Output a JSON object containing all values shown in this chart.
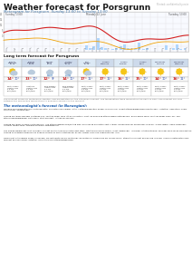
{
  "title": "Weather forecast for Porsgrunn",
  "subtitle": "Meteogram for Porsgrunn  Sunday 13:00 to Tuesday 13:00",
  "top_right_text": "Printed: confidentiality note",
  "background_color": "#ffffff",
  "title_fontsize": 6.5,
  "meteogram_label_left": "Sunday 13:00",
  "meteogram_label_mid": "Monday 22 June",
  "meteogram_label_right": "Tuesday 13:00",
  "long_term_title": "Long term forecast for Porsgrunn",
  "temp_line_color": "#d42020",
  "temp_line_color2": "#f0a000",
  "precip_color": "#99ccff",
  "grid_color": "#dddddd",
  "chart_bg": "#f8faff",
  "columns": [
    "Sunday\nafternoon\n13-18",
    "Sunday\nevening\n18-00",
    "Monday\nnight\n00-06",
    "Tuesday\nmorning\n06-12",
    "Late\nTuesday\n12-18",
    "Tuesday\nafternoon",
    "Tuesday\nevening",
    "Tuesday\nnight",
    "Wednesday\nmorning",
    "Wednesday\nafternoon"
  ],
  "col_header_bg": [
    "#c8d8ec",
    "#c8d8ec",
    "#c8d8ec",
    "#c8d8ec",
    "#c8d8ec",
    "#c8d8ec",
    "#c8d8ec",
    "#c8d8ec",
    "#c8d8ec",
    "#c8d8ec"
  ],
  "col_icon_type": [
    "partly_cloudy",
    "cloudy",
    "rainy",
    "rainy",
    "partly_cloudy",
    "sunny",
    "sunny",
    "sunny",
    "sunny",
    "sunny"
  ],
  "col_temp_high": [
    "14",
    "13",
    "12",
    "14",
    "17",
    "17",
    "16",
    "15",
    "14",
    "16"
  ],
  "col_temp_low": [
    "10",
    "10",
    "9",
    "10",
    "11",
    "11",
    "11",
    "10",
    "10",
    "11"
  ],
  "col_desc": [
    "Partly cloudy\nLight breeze\n2-3 m/s\ngusty/calm",
    "Light rain\nLight breeze\n2-3 m/s\ngusty/calm",
    "Rain showers\nLight breeze\n3-4 m/s\ngusty/calm",
    "Rain showers\nLight breeze\n3-4 m/s\ngusty/calm",
    "Partly cloudy\nLight breeze\n2-3 m/s\ngusty/calm",
    "Partly cloudy\nLight breeze\n2-3 m/s\ngusty/calm",
    "Partly cloudy\nLight breeze\n2-3 m/s\ngusty/calm",
    "Partly cloudy\nLight breeze\n2-3 m/s\ngusty/calm",
    "Partly cloudy\nLight breeze\n2-3 m/s\ngusty/calm",
    "Partly cloudy\nLight breeze\n2-3 m/s\ngusty/calm"
  ],
  "body_intro": "The forecast shown by meteogram weather and precipitation for the afternoon forecast. The temperature trend forecast for the next 10 days. The forecast can vary between the forecasting forecast due to available sources on the forecast.",
  "body_heading": "The meteorologist's forecast (in Norwegian):",
  "body_paras": [
    "Mandag og Tirsdag Etterlap: Skiftende lette. Pa kysten noe nedbor, lette. I ettermiddag liten nedbor mellom kl.8. Lokalt ettermiddagsbyger med tordenL, ustettig i indre strok. Ellers delvis skyer. oppklaringer.",
    "Tirsdag og Agder Mandag: Skiftende bris. Vent pa byger med litt av pa kysten i vest. Ira avending ettermiddag skiftende bris. Ellers delvis skyer. Ferst pa byger nqer i ser, mer ettermiddagsregnbyger og torden i Stalt-omradet. I ytrge for kvelden.",
    "Tirsdag og Agder Tirsdag: Skiftende bris. I lra ettermiddagen syd/vestlig opp i frisk kaling pa kysten vest i Agder. Oppholdsbuner og perioder med sol. Finere dagen lokale regnbyger, ustettig, tordre-strek. Utstame sandalen temperaturer.",
    "Sen fredag Wednesday mot Thursday: Fra det norste sterk eller ostnordost sterk, ustettig kailing pa kysten i vest. Regnbyger. I omviker ustettig steding, perioder med sol pa Framkanten. Tirsdag vil regngodsbygninga av Bygene friends av og til ustetlige del av iker Nroge, men noe oppklarstknter i om.",
    "Norge mot Ostlakdgarn Friday or Sunday: Fra det norste lokale ventrifikdr, pa kysten av Tromsmork og. Torens midly, stred-stor sla vest kva pa opp i kalling. I nordnik betkonsten kom forecast pa noen byger, ustettig i indre strok noe ettermiddagsbyger."
  ]
}
